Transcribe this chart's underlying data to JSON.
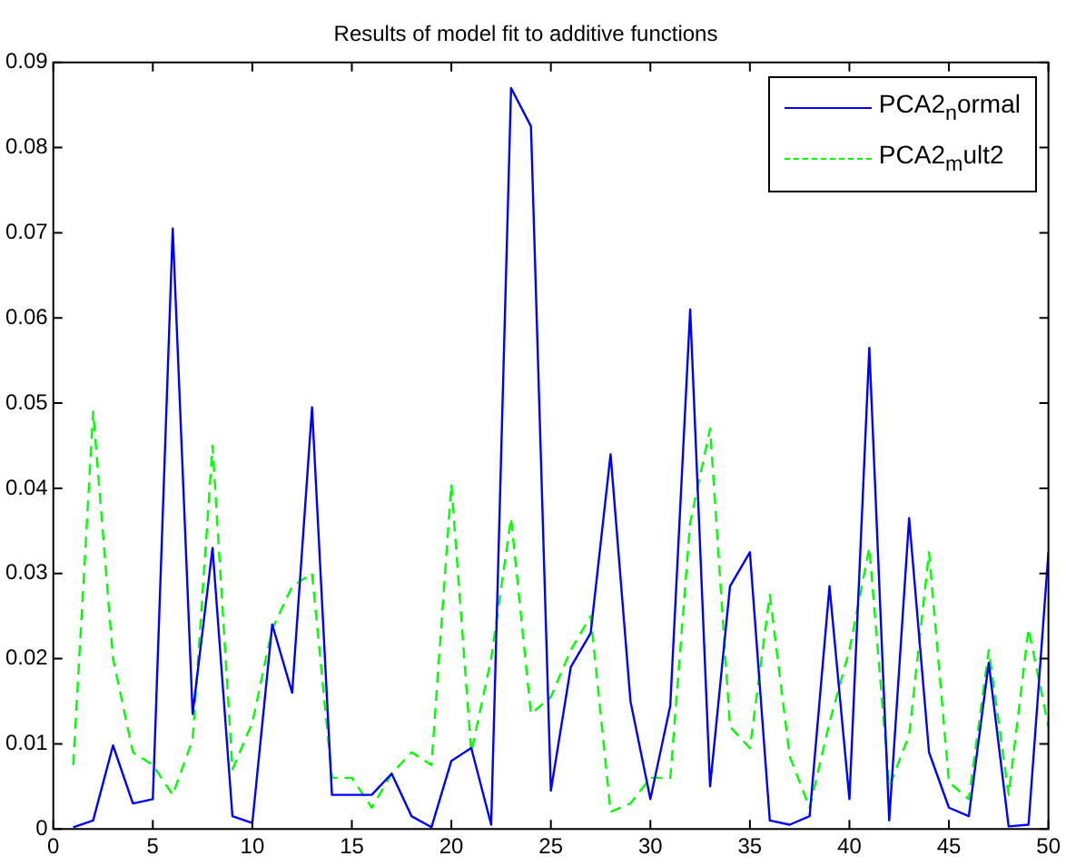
{
  "chart_data": {
    "type": "line",
    "title": "Results of model fit to additive functions",
    "x": [
      1,
      2,
      3,
      4,
      5,
      6,
      7,
      8,
      9,
      10,
      11,
      12,
      13,
      14,
      15,
      16,
      17,
      18,
      19,
      20,
      21,
      22,
      23,
      24,
      25,
      26,
      27,
      28,
      29,
      30,
      31,
      32,
      33,
      34,
      35,
      36,
      37,
      38,
      39,
      40,
      41,
      42,
      43,
      44,
      45,
      46,
      47,
      48,
      49,
      50
    ],
    "series": [
      {
        "name": "PCA2$_{n}$ormal",
        "color": "#0000ff",
        "line_style": "solid",
        "values": [
          0.0002,
          0.001,
          0.0098,
          0.003,
          0.0035,
          0.0705,
          0.0135,
          0.033,
          0.0015,
          0.0007,
          0.024,
          0.016,
          0.0495,
          0.004,
          0.004,
          0.004,
          0.0065,
          0.0015,
          0.0002,
          0.008,
          0.0095,
          0.0005,
          0.087,
          0.0825,
          0.0045,
          0.019,
          0.023,
          0.044,
          0.015,
          0.0035,
          0.0145,
          0.061,
          0.005,
          0.0285,
          0.0325,
          0.001,
          0.0005,
          0.0015,
          0.0285,
          0.0035,
          0.0565,
          0.001,
          0.0365,
          0.009,
          0.0025,
          0.0015,
          0.0195,
          0.0003,
          0.0005,
          0.0325
        ]
      },
      {
        "name": "PCA2$_{m}$ult2",
        "color": "#00ff00",
        "line_style": "dashed",
        "values": [
          0.0075,
          0.049,
          0.02,
          0.009,
          0.0075,
          0.004,
          0.0105,
          0.045,
          0.007,
          0.0125,
          0.0235,
          0.0285,
          0.03,
          0.006,
          0.006,
          0.0025,
          0.0065,
          0.009,
          0.0075,
          0.0405,
          0.009,
          0.02,
          0.0365,
          0.0135,
          0.0155,
          0.021,
          0.025,
          0.002,
          0.003,
          0.006,
          0.006,
          0.036,
          0.047,
          0.012,
          0.0095,
          0.0275,
          0.0085,
          0.0025,
          0.0125,
          0.021,
          0.033,
          0.005,
          0.011,
          0.0325,
          0.0055,
          0.0035,
          0.021,
          0.004,
          0.0235,
          0.012
        ]
      }
    ],
    "xlim": [
      0,
      50
    ],
    "xticks": [
      0,
      5,
      10,
      15,
      20,
      25,
      30,
      35,
      40,
      45,
      50
    ],
    "ylim": [
      0,
      0.09
    ],
    "yticks": [
      0,
      0.01,
      0.02,
      0.03,
      0.04,
      0.05,
      0.06,
      0.07,
      0.08,
      0.09
    ],
    "grid": false,
    "legend": "top right",
    "marker": "none"
  }
}
